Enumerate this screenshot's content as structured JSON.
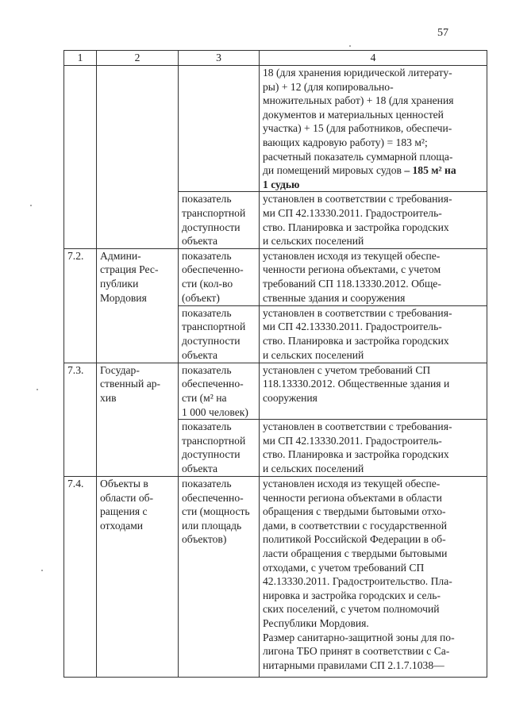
{
  "page_number": "57",
  "header": [
    "1",
    "2",
    "3",
    "4"
  ],
  "row_top": {
    "col4": "18 (для хранения юридической литерату-\nры) + 12 (для копировально-\nмножительных работ) + 18 (для хранения\nдокументов и материальных ценностей\nучастка) + 15 (для работников, обеспечи-\nвающих кадровую работу) = 183 м²;\nрасчетный показатель суммарной площа-\nди помещений мировых судов ",
    "col4_bold": "– 185 м² на\n1 судью"
  },
  "transport_indicator": "показатель\nтранспортной\nдоступности\nобъекта",
  "transport_note": "установлен в соответствии с требования-\nми СП 42.13330.2011. Градостроитель-\nство. Планировка и застройка городских\nи сельских поселений",
  "rows": [
    {
      "num": "7.2.",
      "name": "Админи-\nстрация Рес-\nпублики\nМордовия",
      "indicator": "показатель\nобеспеченно-\nсти (кол-во\n(объект)",
      "note": "установлен исходя из текущей обеспе-\nченности региона объектами, с учетом\nтребований СП 118.13330.2012. Обще-\nственные здания и сооружения"
    },
    {
      "num": "7.3.",
      "name": "Государ-\nственный ар-\nхив",
      "indicator": "показатель\nобеспеченно-\nсти (м² на\n1 000 человек)",
      "note": "установлен с учетом требований СП\n118.13330.2012. Общественные здания и\nсооружения"
    },
    {
      "num": "7.4.",
      "name": "Объекты в\nобласти об-\nращения с\nотходами",
      "indicator": "показатель\nобеспеченно-\nсти (мощность\nили площадь\nобъектов)",
      "note": "установлен исходя из текущей обеспе-\nченности региона объектами в области\nобращения с твердыми бытовыми отхо-\nдами, в соответствии с государственной\nполитикой Российской Федерации в об-\nласти обращения с твердыми бытовыми\nотходами, с учетом требований СП\n42.13330.2011. Градостроительство. Пла-\nнировка и застройка городских и сель-\nских поселений, с учетом полномочий\nРеспублики Мордовия.\nРазмер санитарно-защитной зоны для по-\nлигона ТБО принят в соответствии с Са-\nнитарными правилами СП 2.1.7.1038—"
    }
  ]
}
